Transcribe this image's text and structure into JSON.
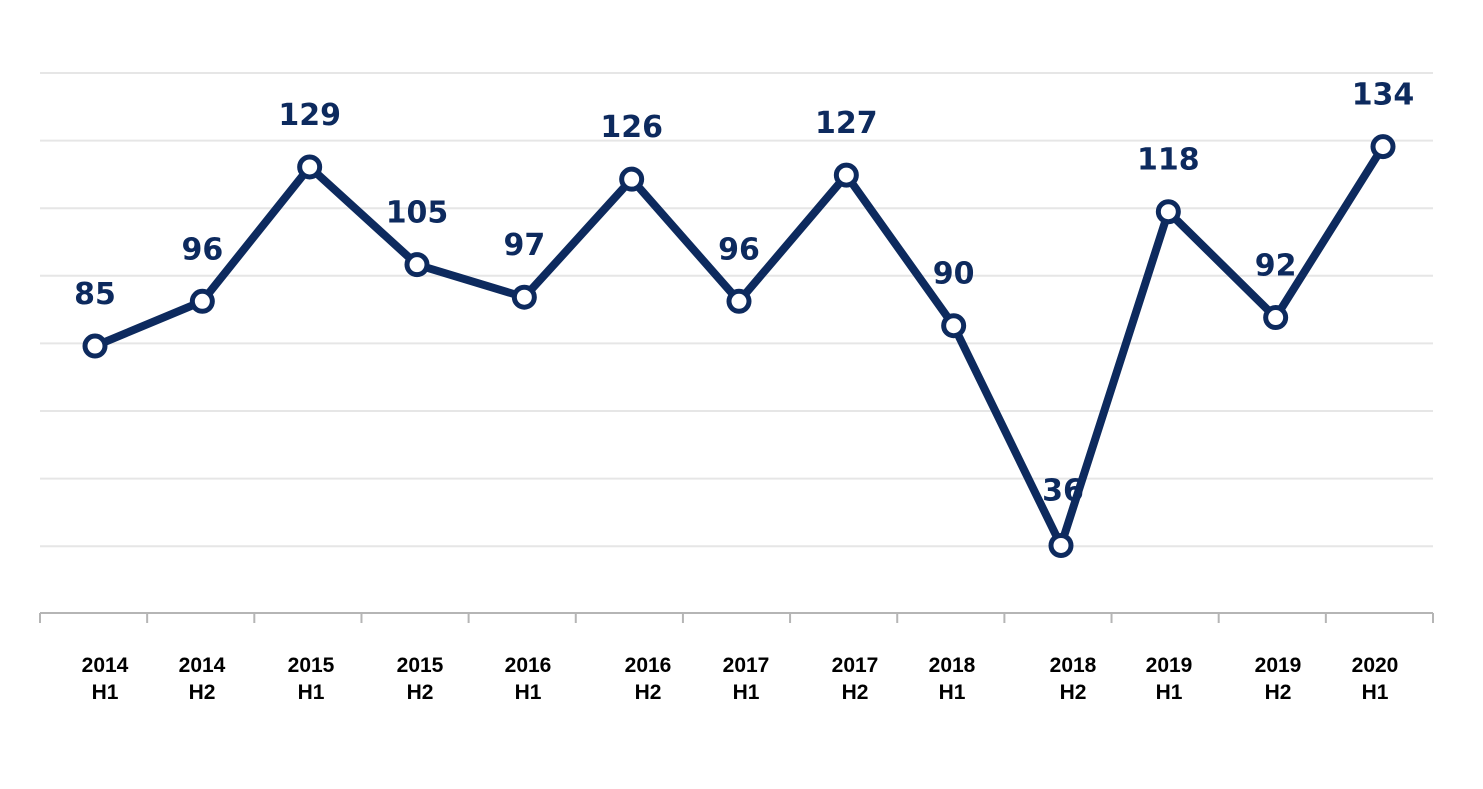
{
  "chart_data": {
    "type": "line",
    "categories": [
      [
        "2014",
        "H1"
      ],
      [
        "2014",
        "H2"
      ],
      [
        "2015",
        "H1"
      ],
      [
        "2015",
        "H2"
      ],
      [
        "2016",
        "H1"
      ],
      [
        "2016",
        "H2"
      ],
      [
        "2017",
        "H1"
      ],
      [
        "2017",
        "H2"
      ],
      [
        "2018",
        "H1"
      ],
      [
        "2018",
        "H2"
      ],
      [
        "2019",
        "H1"
      ],
      [
        "2019",
        "H2"
      ],
      [
        "2020",
        "H1"
      ]
    ],
    "series": [
      {
        "values": [
          85,
          96,
          129,
          105,
          97,
          126,
          96,
          127,
          90,
          36,
          118,
          92,
          134
        ]
      }
    ],
    "data_labels": [
      "85",
      "96",
      "129",
      "105",
      "97",
      "126",
      "96",
      "127",
      "90",
      "36",
      "118",
      "92",
      "134"
    ],
    "title": "",
    "xlabel": "",
    "ylabel": "",
    "ylim": [
      0,
      160
    ],
    "grid": true,
    "legend": "none",
    "colors": {
      "line": "#0d2a5e",
      "label": "#0d2a5e",
      "grid": "#e6e6e6",
      "axis": "#b5b5b5"
    }
  }
}
